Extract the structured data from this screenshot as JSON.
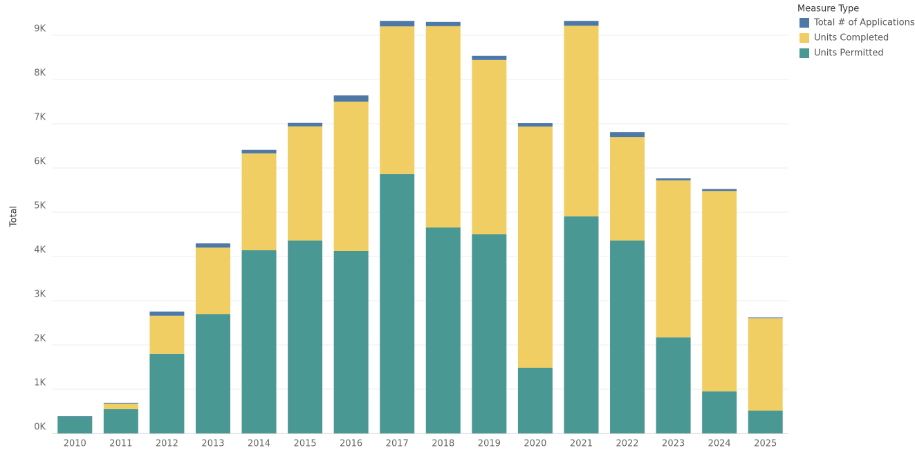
{
  "chart_data": {
    "type": "stacked-bar",
    "y_label": "Total",
    "legend_title": "Measure Type",
    "categories": [
      "2010",
      "2011",
      "2012",
      "2013",
      "2014",
      "2015",
      "2016",
      "2017",
      "2018",
      "2019",
      "2020",
      "2021",
      "2022",
      "2023",
      "2024",
      "2025"
    ],
    "series": [
      {
        "name": "Total # of Applications",
        "color": "#4e79a7",
        "values": [
          10,
          15,
          95,
          95,
          80,
          80,
          140,
          125,
          95,
          95,
          80,
          110,
          110,
          45,
          45,
          15
        ]
      },
      {
        "name": "Units Completed",
        "color": "#f1ce63",
        "values": [
          0,
          125,
          860,
          1500,
          2190,
          2580,
          3375,
          3340,
          4550,
          3940,
          5450,
          4310,
          2340,
          3550,
          4530,
          2090
        ]
      },
      {
        "name": "Units Permitted",
        "color": "#499894",
        "values": [
          380,
          550,
          1800,
          2700,
          4140,
          4360,
          4125,
          5860,
          4655,
          4500,
          1485,
          4905,
          4360,
          2170,
          950,
          515
        ]
      }
    ],
    "ylim": [
      0,
      9800
    ],
    "yticks": [
      {
        "value": 0,
        "label": "0K"
      },
      {
        "value": 1000,
        "label": "1K"
      },
      {
        "value": 2000,
        "label": "2K"
      },
      {
        "value": 3000,
        "label": "3K"
      },
      {
        "value": 4000,
        "label": "4K"
      },
      {
        "value": 5000,
        "label": "5K"
      },
      {
        "value": 6000,
        "label": "6K"
      },
      {
        "value": 7000,
        "label": "7K"
      },
      {
        "value": 8000,
        "label": "8K"
      },
      {
        "value": 9000,
        "label": "9K"
      }
    ],
    "grid": true
  }
}
